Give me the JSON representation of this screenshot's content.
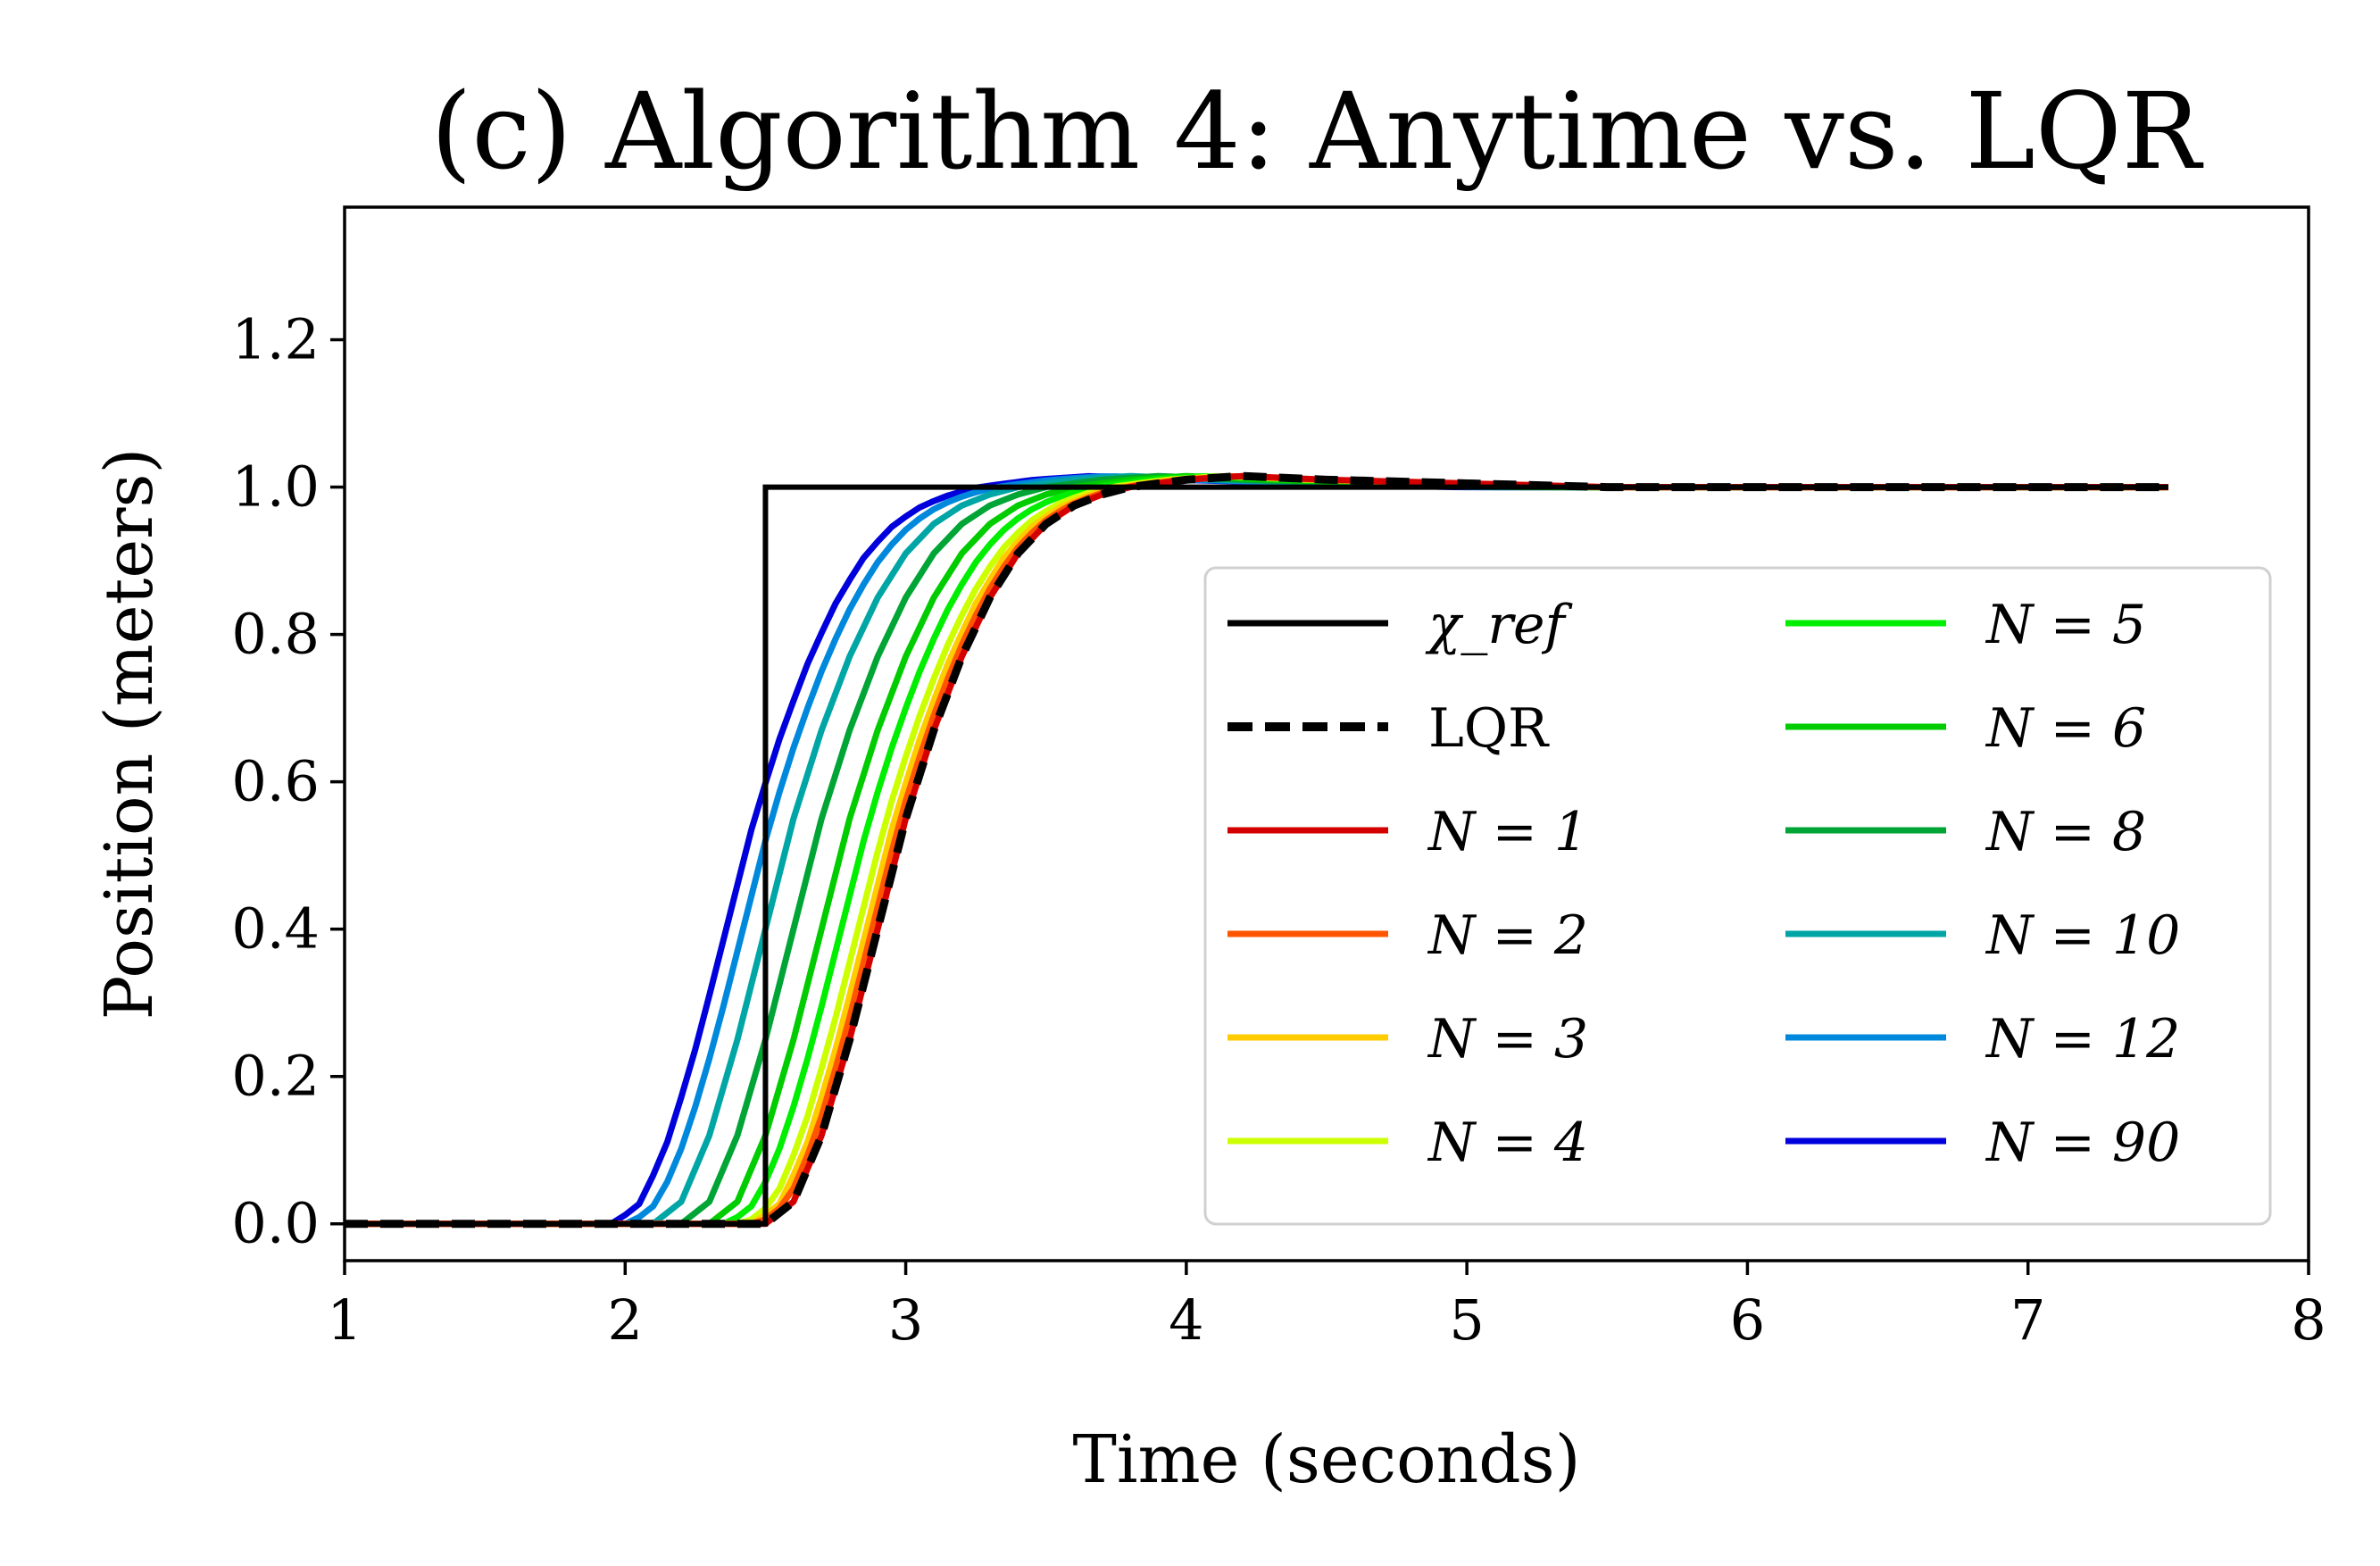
{
  "chart_data": {
    "type": "line",
    "title": "(c) Algorithm 4: Anytime vs. LQR",
    "xlabel": "Time (seconds)",
    "ylabel": "Position (meters)",
    "xlim": [
      1,
      8
    ],
    "ylim": [
      -0.05,
      1.38
    ],
    "xticks": [
      "1",
      "2",
      "3",
      "4",
      "5",
      "6",
      "7",
      "8"
    ],
    "yticks": [
      "0.0",
      "0.2",
      "0.4",
      "0.6",
      "0.8",
      "1.0",
      "1.2"
    ],
    "grid": false,
    "legend_position": "lower-right",
    "legend_columns": 2,
    "reference": {
      "name": "χ_ref",
      "color": "#000000",
      "x": [
        1.0,
        2.5,
        2.5,
        7.5
      ],
      "y": [
        0.0,
        0.0,
        1.0,
        1.0
      ]
    },
    "lqr": {
      "name": "LQR",
      "color": "#000000",
      "dashed": true,
      "x": [
        1.0,
        2.5,
        2.6,
        2.7,
        2.8,
        2.9,
        3.0,
        3.1,
        3.2,
        3.3,
        3.4,
        3.5,
        3.6,
        3.7,
        3.8,
        3.9,
        4.0,
        4.2,
        4.5,
        5.0,
        5.5,
        6.0,
        7.0,
        7.5
      ],
      "y": [
        0.0,
        0.0,
        0.03,
        0.12,
        0.25,
        0.4,
        0.55,
        0.67,
        0.77,
        0.85,
        0.91,
        0.95,
        0.975,
        0.99,
        1.0,
        1.005,
        1.01,
        1.015,
        1.01,
        1.005,
        1.0,
        1.0,
        1.0,
        1.0
      ]
    },
    "series": [
      {
        "name": "N = 1",
        "color": "#d40000",
        "shift": 0.0
      },
      {
        "name": "N = 2",
        "color": "#ff5500",
        "shift": 0.02
      },
      {
        "name": "N = 3",
        "color": "#ffcc00",
        "shift": 0.04
      },
      {
        "name": "N = 4",
        "color": "#ccff00",
        "shift": 0.07
      },
      {
        "name": "N = 5",
        "color": "#00ee00",
        "shift": 0.13
      },
      {
        "name": "N = 6",
        "color": "#00cc00",
        "shift": 0.2
      },
      {
        "name": "N = 8",
        "color": "#00a535",
        "shift": 0.3
      },
      {
        "name": "N = 10",
        "color": "#00a5a5",
        "shift": 0.4
      },
      {
        "name": "N = 12",
        "color": "#0088dd",
        "shift": 0.48
      },
      {
        "name": "N = 90",
        "color": "#0000dd",
        "shift": 0.54
      }
    ]
  }
}
